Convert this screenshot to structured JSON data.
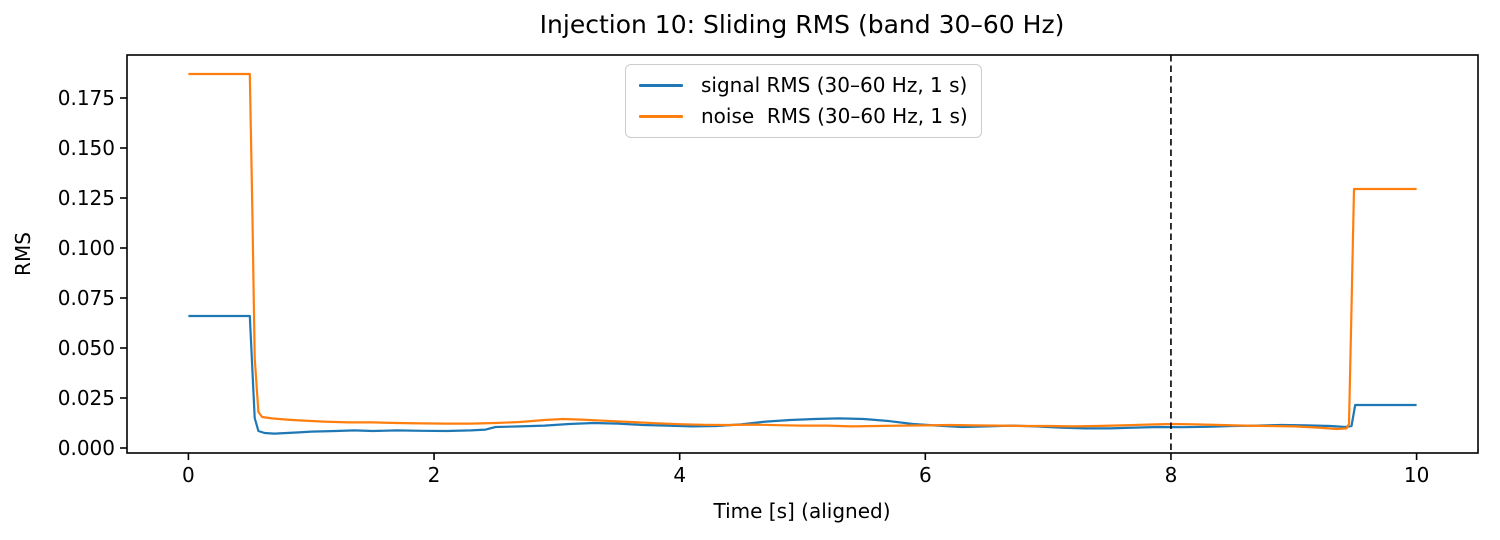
{
  "chart_data": {
    "type": "line",
    "title": "Injection 10: Sliding RMS (band 30–60 Hz)",
    "xlabel": "Time [s] (aligned)",
    "ylabel": "RMS",
    "xlim": [
      -0.5,
      10.5
    ],
    "ylim": [
      -0.0025,
      0.1965
    ],
    "grid": false,
    "legend_position": "upper center",
    "xticks": {
      "values": [
        0,
        2,
        4,
        6,
        8,
        10
      ],
      "labels": [
        "0",
        "2",
        "4",
        "6",
        "8",
        "10"
      ]
    },
    "yticks": {
      "values": [
        0.0,
        0.025,
        0.05,
        0.075,
        0.1,
        0.125,
        0.15,
        0.175
      ],
      "labels": [
        "0.000",
        "0.025",
        "0.050",
        "0.075",
        "0.100",
        "0.125",
        "0.150",
        "0.175"
      ]
    },
    "vline": {
      "x": 8,
      "color": "#000000",
      "style": "dashed"
    },
    "series": [
      {
        "name": "signal RMS (30–60 Hz, 1 s)",
        "id": "signal",
        "color": "#1f77b4",
        "points": [
          [
            0,
            0.066
          ],
          [
            0.5,
            0.066
          ],
          [
            0.52,
            0.04
          ],
          [
            0.54,
            0.015
          ],
          [
            0.57,
            0.0085
          ],
          [
            0.62,
            0.0075
          ],
          [
            0.7,
            0.0072
          ],
          [
            0.8,
            0.0075
          ],
          [
            0.9,
            0.0078
          ],
          [
            1.0,
            0.0082
          ],
          [
            1.2,
            0.0085
          ],
          [
            1.35,
            0.0088
          ],
          [
            1.5,
            0.0085
          ],
          [
            1.7,
            0.0088
          ],
          [
            1.9,
            0.0086
          ],
          [
            2.1,
            0.0085
          ],
          [
            2.3,
            0.0088
          ],
          [
            2.42,
            0.0092
          ],
          [
            2.5,
            0.0105
          ],
          [
            2.7,
            0.0108
          ],
          [
            2.9,
            0.0112
          ],
          [
            3.1,
            0.012
          ],
          [
            3.3,
            0.0125
          ],
          [
            3.5,
            0.0122
          ],
          [
            3.7,
            0.0115
          ],
          [
            3.9,
            0.0112
          ],
          [
            4.1,
            0.0108
          ],
          [
            4.3,
            0.011
          ],
          [
            4.5,
            0.0118
          ],
          [
            4.7,
            0.0132
          ],
          [
            4.9,
            0.014
          ],
          [
            5.1,
            0.0145
          ],
          [
            5.3,
            0.0148
          ],
          [
            5.5,
            0.0145
          ],
          [
            5.7,
            0.0135
          ],
          [
            5.9,
            0.012
          ],
          [
            6.1,
            0.0112
          ],
          [
            6.3,
            0.0105
          ],
          [
            6.5,
            0.0108
          ],
          [
            6.7,
            0.0112
          ],
          [
            6.9,
            0.0108
          ],
          [
            7.1,
            0.0102
          ],
          [
            7.3,
            0.0098
          ],
          [
            7.5,
            0.0098
          ],
          [
            7.7,
            0.0102
          ],
          [
            7.9,
            0.0105
          ],
          [
            8.1,
            0.0104
          ],
          [
            8.3,
            0.0106
          ],
          [
            8.5,
            0.011
          ],
          [
            8.7,
            0.0112
          ],
          [
            8.9,
            0.0115
          ],
          [
            9.1,
            0.0113
          ],
          [
            9.3,
            0.011
          ],
          [
            9.42,
            0.0105
          ],
          [
            9.47,
            0.011
          ],
          [
            9.5,
            0.0215
          ],
          [
            10,
            0.0215
          ]
        ]
      },
      {
        "name": "noise  RMS (30–60 Hz, 1 s)",
        "id": "noise",
        "color": "#ff7f0e",
        "points": [
          [
            0,
            0.187
          ],
          [
            0.5,
            0.187
          ],
          [
            0.52,
            0.12
          ],
          [
            0.54,
            0.045
          ],
          [
            0.57,
            0.018
          ],
          [
            0.6,
            0.0155
          ],
          [
            0.68,
            0.0148
          ],
          [
            0.8,
            0.0142
          ],
          [
            0.9,
            0.0138
          ],
          [
            1.1,
            0.0132
          ],
          [
            1.3,
            0.0128
          ],
          [
            1.5,
            0.0128
          ],
          [
            1.7,
            0.0125
          ],
          [
            1.9,
            0.0123
          ],
          [
            2.1,
            0.0122
          ],
          [
            2.3,
            0.0122
          ],
          [
            2.5,
            0.0125
          ],
          [
            2.7,
            0.013
          ],
          [
            2.9,
            0.014
          ],
          [
            3.05,
            0.0145
          ],
          [
            3.2,
            0.0142
          ],
          [
            3.4,
            0.0136
          ],
          [
            3.6,
            0.013
          ],
          [
            3.8,
            0.0124
          ],
          [
            4.0,
            0.0119
          ],
          [
            4.2,
            0.0116
          ],
          [
            4.4,
            0.0115
          ],
          [
            4.6,
            0.0117
          ],
          [
            4.8,
            0.0114
          ],
          [
            5.0,
            0.0112
          ],
          [
            5.2,
            0.0112
          ],
          [
            5.4,
            0.0108
          ],
          [
            5.6,
            0.011
          ],
          [
            5.8,
            0.0112
          ],
          [
            6.0,
            0.0113
          ],
          [
            6.2,
            0.0115
          ],
          [
            6.4,
            0.0113
          ],
          [
            6.6,
            0.0112
          ],
          [
            6.8,
            0.011
          ],
          [
            7.0,
            0.011
          ],
          [
            7.2,
            0.0108
          ],
          [
            7.4,
            0.011
          ],
          [
            7.6,
            0.0113
          ],
          [
            7.8,
            0.0117
          ],
          [
            8.0,
            0.012
          ],
          [
            8.2,
            0.0118
          ],
          [
            8.4,
            0.0115
          ],
          [
            8.6,
            0.0112
          ],
          [
            8.8,
            0.011
          ],
          [
            9.0,
            0.0108
          ],
          [
            9.2,
            0.0102
          ],
          [
            9.35,
            0.0095
          ],
          [
            9.43,
            0.0098
          ],
          [
            9.45,
            0.012
          ],
          [
            9.47,
            0.07
          ],
          [
            9.49,
            0.1295
          ],
          [
            10,
            0.1295
          ]
        ]
      }
    ],
    "colors": {
      "signal": "#1f77b4",
      "noise": "#ff7f0e",
      "axis": "#000000",
      "legend_border": "#cccccc"
    }
  }
}
